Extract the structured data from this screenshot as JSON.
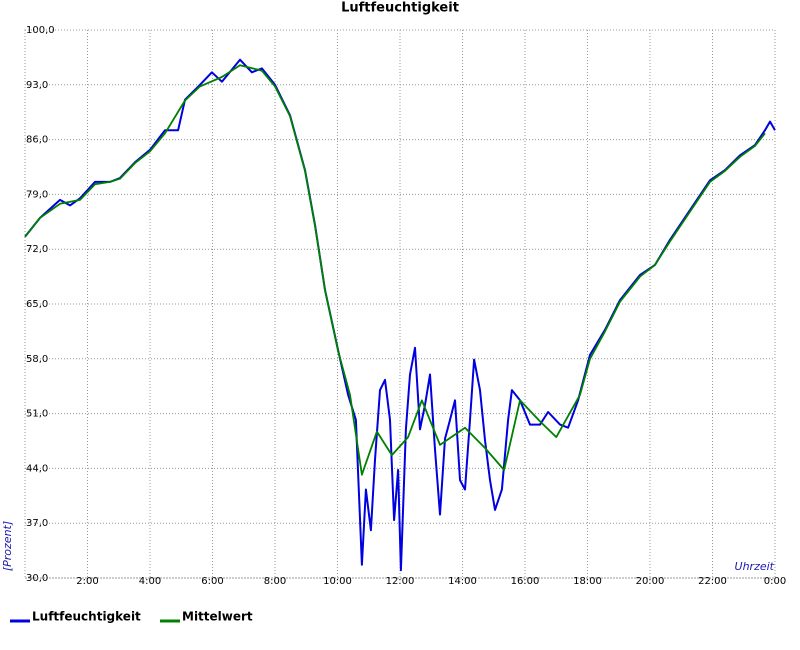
{
  "chart_data": {
    "type": "line",
    "title": "Luftfeuchtigkeit",
    "y_label": "[Prozent]",
    "x_label": "Uhrzeit",
    "xlim": [
      0,
      24
    ],
    "ylim": [
      30,
      100
    ],
    "xticks": [
      {
        "value": 2,
        "label": "2:00"
      },
      {
        "value": 4,
        "label": "4:00"
      },
      {
        "value": 6,
        "label": "6:00"
      },
      {
        "value": 8,
        "label": "8:00"
      },
      {
        "value": 10,
        "label": "10:00"
      },
      {
        "value": 12,
        "label": "12:00"
      },
      {
        "value": 14,
        "label": "14:00"
      },
      {
        "value": 16,
        "label": "16:00"
      },
      {
        "value": 18,
        "label": "18:00"
      },
      {
        "value": 20,
        "label": "20:00"
      },
      {
        "value": 22,
        "label": "22:00"
      },
      {
        "value": 24,
        "label": "0:00"
      }
    ],
    "yticks": [
      {
        "value": 30,
        "label": "30,0"
      },
      {
        "value": 37,
        "label": "37,0"
      },
      {
        "value": 44,
        "label": "44,0"
      },
      {
        "value": 51,
        "label": "51,0"
      },
      {
        "value": 58,
        "label": "58,0"
      },
      {
        "value": 65,
        "label": "65,0"
      },
      {
        "value": 72,
        "label": "72,0"
      },
      {
        "value": 79,
        "label": "79,0"
      },
      {
        "value": 86,
        "label": "86,0"
      },
      {
        "value": 93,
        "label": "93,0"
      },
      {
        "value": 100,
        "label": "100,0"
      }
    ],
    "grid": true,
    "series": [
      {
        "name": "Luftfeuchtigkeit",
        "color": "#0000e0",
        "x": [
          0,
          0.48,
          1.12,
          1.44,
          1.76,
          2.24,
          2.72,
          3.04,
          3.52,
          4.0,
          4.48,
          4.9,
          5.12,
          5.6,
          5.98,
          6.3,
          6.88,
          7.26,
          7.58,
          8.0,
          8.48,
          8.96,
          9.28,
          9.6,
          10.02,
          10.34,
          10.59,
          10.78,
          10.91,
          11.07,
          11.2,
          11.36,
          11.52,
          11.68,
          11.81,
          11.94,
          12.03,
          12.19,
          12.32,
          12.48,
          12.64,
          12.8,
          12.96,
          13.12,
          13.28,
          13.44,
          13.6,
          13.76,
          13.92,
          14.08,
          14.24,
          14.37,
          14.56,
          14.72,
          14.88,
          15.04,
          15.26,
          15.46,
          15.58,
          15.84,
          16.16,
          16.48,
          16.74,
          17.12,
          17.38,
          17.7,
          18.08,
          18.56,
          19.04,
          19.68,
          20.16,
          20.64,
          21.28,
          21.92,
          22.4,
          22.88,
          23.36,
          23.68,
          23.84,
          24.0
        ],
        "values": [
          73.6,
          76.0,
          78.3,
          77.6,
          78.5,
          80.6,
          80.6,
          81.1,
          83.1,
          84.7,
          87.2,
          87.2,
          91.1,
          93.0,
          94.6,
          93.4,
          96.2,
          94.6,
          95.1,
          93.0,
          89.1,
          82.1,
          75.1,
          66.8,
          59.1,
          53.4,
          50.2,
          31.7,
          41.3,
          36.1,
          45.1,
          54.0,
          55.3,
          50.2,
          37.4,
          43.8,
          31.0,
          49.0,
          56.0,
          59.4,
          49.0,
          52.1,
          56.0,
          46.4,
          38.1,
          47.8,
          50.2,
          52.7,
          42.5,
          41.3,
          50.2,
          57.9,
          54.0,
          47.6,
          42.5,
          38.7,
          41.3,
          50.2,
          54.0,
          52.7,
          49.6,
          49.6,
          51.2,
          49.6,
          49.2,
          52.7,
          58.5,
          61.7,
          65.5,
          68.7,
          70.0,
          73.2,
          77.0,
          80.8,
          82.1,
          84.0,
          85.3,
          87.2,
          88.3,
          87.2
        ]
      },
      {
        "name": "Mittelwert",
        "color": "#008000",
        "x": [
          0,
          0.48,
          1.12,
          1.76,
          2.24,
          2.72,
          3.04,
          3.52,
          4.0,
          4.48,
          5.12,
          5.6,
          6.3,
          6.88,
          7.58,
          8.0,
          8.48,
          8.96,
          9.28,
          9.6,
          10.02,
          10.4,
          10.78,
          11.26,
          11.74,
          12.26,
          12.7,
          13.28,
          14.08,
          14.72,
          15.33,
          15.84,
          16.48,
          17.0,
          17.76,
          18.08,
          18.56,
          19.04,
          19.68,
          20.16,
          20.64,
          21.28,
          21.92,
          22.4,
          22.88,
          23.36,
          23.68
        ],
        "values": [
          73.6,
          76.0,
          77.8,
          78.3,
          80.3,
          80.6,
          81.0,
          83.0,
          84.5,
          86.8,
          91.0,
          92.8,
          94.0,
          95.5,
          94.8,
          92.8,
          89.0,
          82.0,
          75.0,
          66.8,
          59.0,
          53.4,
          43.2,
          48.7,
          45.7,
          48.0,
          52.7,
          47.0,
          49.2,
          46.6,
          43.8,
          52.7,
          50.0,
          48.0,
          53.4,
          58.0,
          61.5,
          65.3,
          68.5,
          70.0,
          73.0,
          76.8,
          80.6,
          82.0,
          83.8,
          85.2,
          86.8
        ]
      }
    ]
  }
}
